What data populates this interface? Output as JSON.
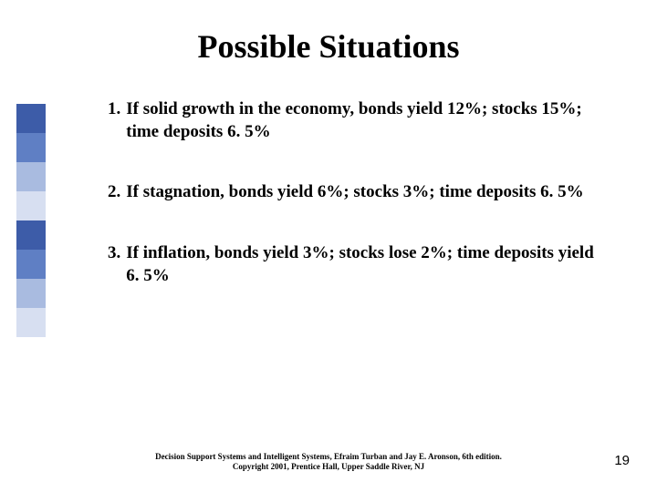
{
  "title": "Possible Situations",
  "sidebar_colors": [
    "#3d5ca8",
    "#5f7fc4",
    "#a9bbe0",
    "#d7dff1",
    "#3d5ca8",
    "#5f7fc4",
    "#a9bbe0",
    "#d7dff1"
  ],
  "items": [
    {
      "num": "1.",
      "text": "If solid growth in the economy, bonds yield 12%; stocks 15%; time deposits 6. 5%"
    },
    {
      "num": "2.",
      "text": "If stagnation, bonds yield 6%; stocks 3%; time deposits 6. 5%"
    },
    {
      "num": "3.",
      "text": "If inflation, bonds yield 3%; stocks lose 2%; time deposits yield 6. 5%"
    }
  ],
  "footer_line1": "Decision Support Systems and Intelligent Systems, Efraim Turban and Jay E. Aronson, 6th edition.",
  "footer_line2": "Copyright 2001, Prentice Hall, Upper Saddle River, NJ",
  "page_number": "19",
  "colors": {
    "background": "#ffffff",
    "text": "#000000"
  },
  "typography": {
    "title_fontsize": 36,
    "body_fontsize": 19,
    "footer_fontsize": 9,
    "pagenum_fontsize": 15,
    "font_family": "Times New Roman"
  }
}
